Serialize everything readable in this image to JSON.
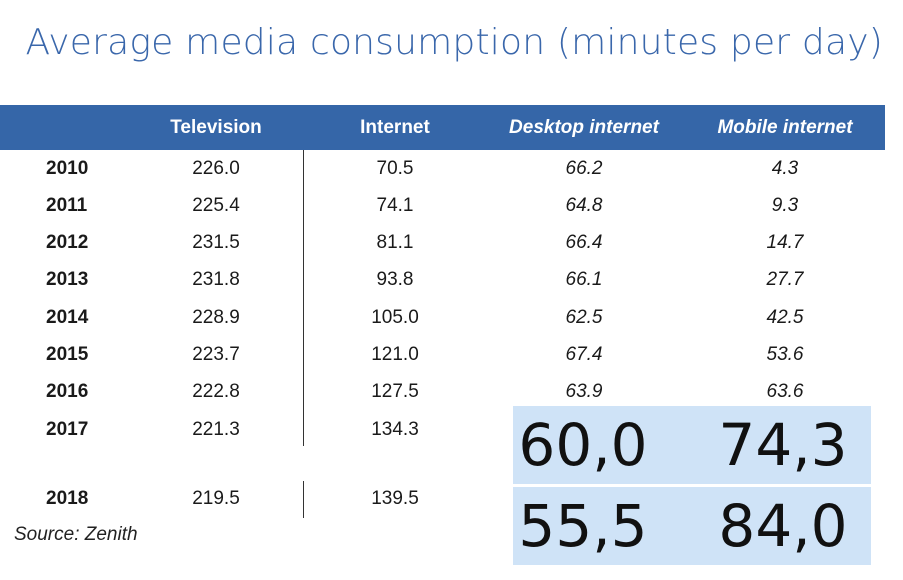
{
  "title": "Average media consumption (minutes per day)",
  "source": "Source: Zenith",
  "colors": {
    "header": "#3566a8",
    "title": "#3a67ab",
    "overlay": "#cfe3f7"
  },
  "chart_data": {
    "type": "table",
    "title": "Average media consumption (minutes per day)",
    "columns": [
      "",
      "Television",
      "Internet",
      "Desktop internet",
      "Mobile internet"
    ],
    "rows": [
      {
        "year": "2010",
        "tv": "226.0",
        "internet": "70.5",
        "desktop": "66.2",
        "mobile": "4.3"
      },
      {
        "year": "2011",
        "tv": "225.4",
        "internet": "74.1",
        "desktop": "64.8",
        "mobile": "9.3"
      },
      {
        "year": "2012",
        "tv": "231.5",
        "internet": "81.1",
        "desktop": "66.4",
        "mobile": "14.7"
      },
      {
        "year": "2013",
        "tv": "231.8",
        "internet": "93.8",
        "desktop": "66.1",
        "mobile": "27.7"
      },
      {
        "year": "2014",
        "tv": "228.9",
        "internet": "105.0",
        "desktop": "62.5",
        "mobile": "42.5"
      },
      {
        "year": "2015",
        "tv": "223.7",
        "internet": "121.0",
        "desktop": "67.4",
        "mobile": "53.6"
      },
      {
        "year": "2016",
        "tv": "222.8",
        "internet": "127.5",
        "desktop": "63.9",
        "mobile": "63.6"
      },
      {
        "year": "2017",
        "tv": "221.3",
        "internet": "134.3",
        "desktop": "60,0",
        "mobile": "74,3"
      },
      {
        "year": "2018",
        "tv": "219.5",
        "internet": "139.5",
        "desktop": "55,5",
        "mobile": "84,0"
      }
    ]
  }
}
